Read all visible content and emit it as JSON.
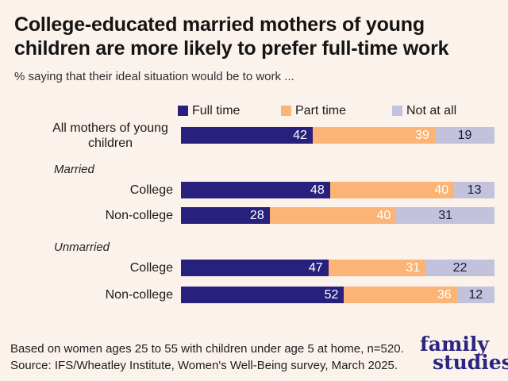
{
  "header": {
    "title": "College-educated married mothers of young children are more likely to prefer full-time work",
    "subtitle": "% saying that their ideal situation would be to work ..."
  },
  "chart_data": {
    "type": "bar",
    "orientation": "horizontal",
    "stacked": true,
    "unit": "percent",
    "xlim": [
      0,
      100
    ],
    "grid": false,
    "legend_position": "top",
    "series_names": [
      "Full time",
      "Part time",
      "Not at all"
    ],
    "colors": [
      "#27207d",
      "#fcb476",
      "#c2c2dd"
    ],
    "rows": [
      {
        "type": "bar",
        "label": "All mothers of young children",
        "values": [
          42,
          39,
          19
        ]
      },
      {
        "type": "section",
        "label": "Married"
      },
      {
        "type": "bar",
        "label": "College",
        "values": [
          48,
          40,
          13
        ]
      },
      {
        "type": "bar",
        "label": "Non-college",
        "values": [
          28,
          40,
          31
        ]
      },
      {
        "type": "section",
        "label": "Unmarried"
      },
      {
        "type": "bar",
        "label": "College",
        "values": [
          47,
          31,
          22
        ]
      },
      {
        "type": "bar",
        "label": "Non-college",
        "values": [
          52,
          36,
          12
        ]
      }
    ]
  },
  "footer": {
    "note": "Based on women ages 25 to 55 with children under age 5 at home, n=520.",
    "source": "Source: IFS/Wheatley Institute, Women's Well-Being survey, March 2025.",
    "logo_line1": "family",
    "logo_line2": "studies"
  },
  "colors": {
    "background": "#fcf2ec",
    "title_text": "#141414",
    "bar_full_time": "#27207d",
    "bar_part_time": "#fcb476",
    "bar_not_at_all": "#c2c2dd",
    "value_label_light": "#ffffff",
    "value_label_dark": "#191932",
    "logo_navy": "#2b2480"
  }
}
